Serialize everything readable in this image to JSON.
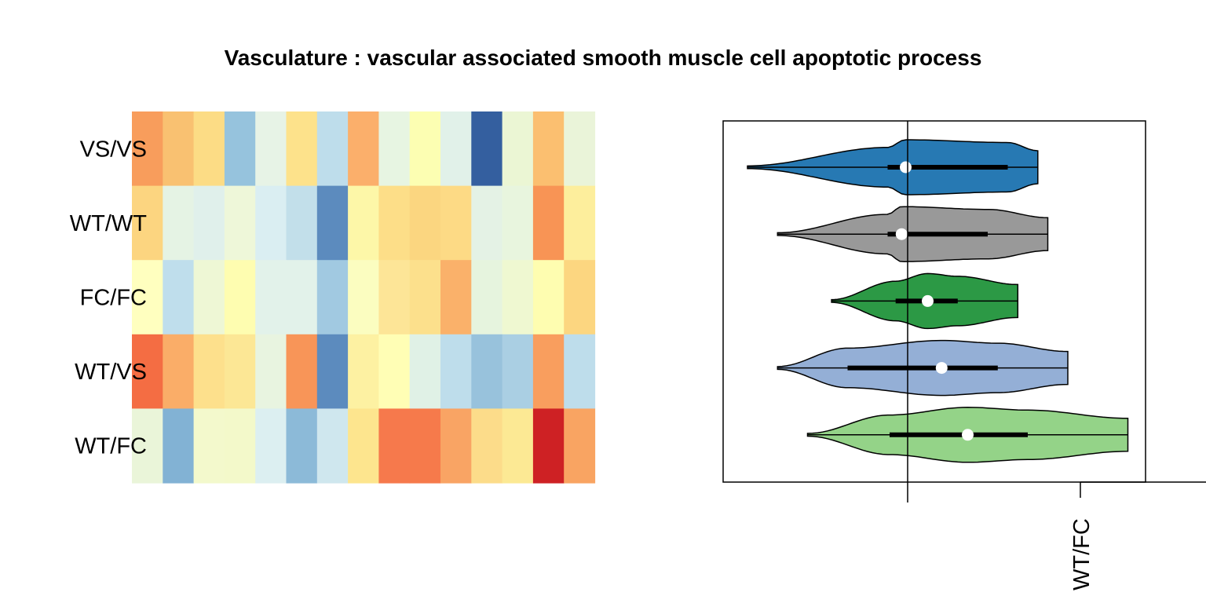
{
  "chart_data": {
    "title": "Vasculature : vascular associated smooth muscle cell apoptotic process",
    "panels": [
      {
        "type": "heatmap",
        "rows": [
          "VS/VS",
          "WT/WT",
          "FC/FC",
          "WT/VS",
          "WT/FC"
        ],
        "n_columns": 15,
        "colors": [
          [
            "#F89D5C",
            "#F9C171",
            "#FCDC85",
            "#96C3DD",
            "#E7F3E6",
            "#FDE28B",
            "#BEDDEB",
            "#FBAF6B",
            "#E7F5E2",
            "#FCFEB2",
            "#E1F1E9",
            "#345F9F",
            "#EBF6D4",
            "#FBBF70",
            "#EAF4D9"
          ],
          [
            "#FCD580",
            "#E5F3E4",
            "#E0F0EB",
            "#EEF7D9",
            "#DAEEF2",
            "#C2DFEA",
            "#5C8BBE",
            "#FDF7A8",
            "#FDDE88",
            "#FBD680",
            "#FDDA85",
            "#E4F2E5",
            "#E8F5DE",
            "#F89455",
            "#FDEE9C"
          ],
          [
            "#FFFFBF",
            "#BFDEEC",
            "#EEF7D5",
            "#FEFDB0",
            "#E2F2EA",
            "#E2F2EA",
            "#A1C9E1",
            "#FBFDC0",
            "#FDE597",
            "#FCE08C",
            "#FAB16A",
            "#E6F4DE",
            "#EFF8D1",
            "#FEFDB0",
            "#FCD680"
          ],
          [
            "#F46D43",
            "#FAAD68",
            "#FDE08C",
            "#FCE795",
            "#E8F4E0",
            "#F89558",
            "#5C8BBE",
            "#FDF1A2",
            "#FFFEB5",
            "#E0F1E6",
            "#BEDDEB",
            "#98C2DC",
            "#AACFE3",
            "#F99E5E",
            "#BEDDEB"
          ],
          [
            "#EAF5D9",
            "#82B2D4",
            "#F3F9CC",
            "#F3F9CA",
            "#DCEFF1",
            "#8CBAD8",
            "#CFE7EE",
            "#FDE58E",
            "#F6794C",
            "#F67A4B",
            "#F9A464",
            "#FCDC8A",
            "#FCE994",
            "#CE2124",
            "#F9A462"
          ]
        ]
      },
      {
        "type": "violin",
        "groups": [
          {
            "name": "VS/VS",
            "color": "#2779B3",
            "median": -0.01,
            "q1": -0.1,
            "q3": 0.5,
            "min": -0.8,
            "max": 0.65
          },
          {
            "name": "WT/WT",
            "color": "#999999",
            "median": -0.03,
            "q1": -0.1,
            "q3": 0.4,
            "min": -0.65,
            "max": 0.7
          },
          {
            "name": "FC/FC",
            "color": "#2C9945",
            "median": 0.1,
            "q1": -0.06,
            "q3": 0.25,
            "min": -0.38,
            "max": 0.55
          },
          {
            "name": "WT/VS",
            "color": "#94AFD6",
            "median": 0.17,
            "q1": -0.3,
            "q3": 0.45,
            "min": -0.65,
            "max": 0.8
          },
          {
            "name": "WT/FC",
            "color": "#94D388",
            "median": 0.3,
            "q1": -0.09,
            "q3": 0.6,
            "min": -0.5,
            "max": 1.1
          }
        ],
        "reference_line": 0,
        "x_tick_labels": [
          "WT/FC"
        ]
      }
    ]
  }
}
